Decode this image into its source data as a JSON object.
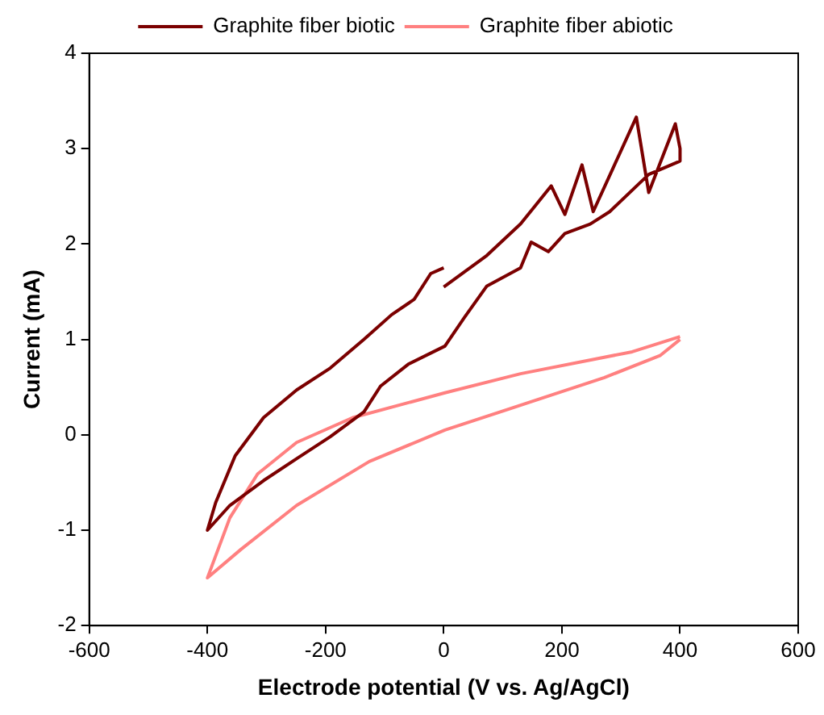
{
  "chart_data": {
    "type": "line",
    "xlabel": "Electrode potential (V vs. Ag/AgCl)",
    "ylabel": "Current (mA)",
    "xlim": [
      -600,
      600
    ],
    "xticks": [
      -600,
      -400,
      -200,
      0,
      200,
      400,
      600
    ],
    "ylim": [
      -2,
      4
    ],
    "yticks": [
      -2,
      -1,
      0,
      1,
      2,
      3,
      4
    ],
    "grid": false,
    "legend": "top",
    "marker": "none",
    "line_style": "solid",
    "series": [
      {
        "name": "Graphite fiber biotic",
        "color": "#7b0000",
        "x": [
          0,
          73,
          130,
          182,
          205,
          234,
          253,
          326,
          347,
          392,
          400,
          400,
          347,
          281,
          248,
          205,
          177,
          148,
          130,
          73,
          35,
          2,
          -60,
          -107,
          -135,
          -192,
          -249,
          -305,
          -362,
          -400,
          -386,
          -353,
          -305,
          -249,
          -192,
          -135,
          -88,
          -50,
          -22,
          0
        ],
        "values": [
          1.55,
          1.88,
          2.21,
          2.61,
          2.31,
          2.83,
          2.34,
          3.33,
          2.54,
          3.26,
          3.0,
          2.87,
          2.73,
          2.34,
          2.21,
          2.11,
          1.92,
          2.02,
          1.75,
          1.56,
          1.23,
          0.93,
          0.74,
          0.51,
          0.24,
          -0.02,
          -0.25,
          -0.48,
          -0.74,
          -1.0,
          -0.71,
          -0.22,
          0.18,
          0.47,
          0.7,
          1.0,
          1.26,
          1.42,
          1.69,
          1.75
        ]
      },
      {
        "name": "Graphite fiber abiotic",
        "color": "#ff8080",
        "x": [
          400,
          319,
          130,
          2,
          -154,
          -249,
          -315,
          -362,
          -400,
          -343,
          -249,
          -126,
          2,
          130,
          272,
          366,
          400
        ],
        "values": [
          1.03,
          0.87,
          0.64,
          0.44,
          0.18,
          -0.08,
          -0.41,
          -0.87,
          -1.5,
          -1.2,
          -0.74,
          -0.28,
          0.05,
          0.31,
          0.6,
          0.83,
          1.0
        ]
      }
    ]
  }
}
